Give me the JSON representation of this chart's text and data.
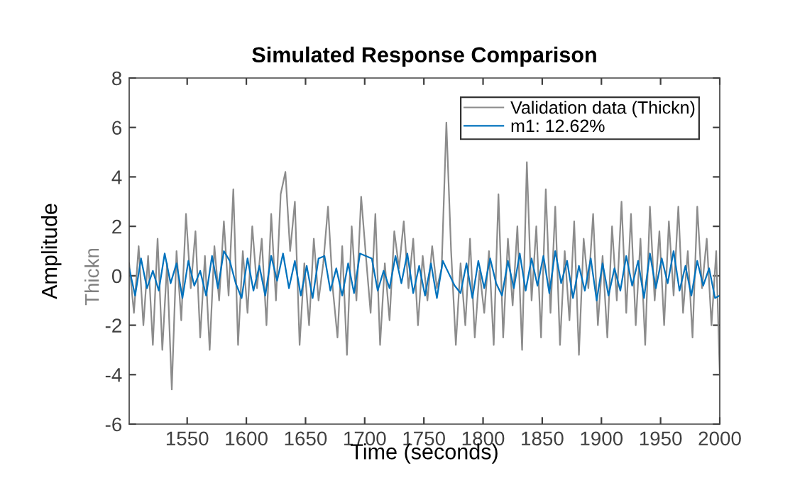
{
  "chart_data": {
    "type": "line",
    "title": "Simulated Response Comparison",
    "xlabel": "Time (seconds)",
    "ylabel": "Amplitude",
    "annotations": [
      "Thickn"
    ],
    "xlim": [
      1501,
      2000
    ],
    "xticks": [
      1550,
      1600,
      1650,
      1700,
      1750,
      1800,
      1850,
      1900,
      1950,
      2000
    ],
    "ylim": [
      -6,
      8
    ],
    "yticks": [
      -6,
      -4,
      -2,
      0,
      2,
      4,
      6,
      8
    ],
    "grid": false,
    "legend": "top right",
    "line_style": "solid",
    "marker": "none",
    "series": [
      {
        "name": "Validation data (Thickn)",
        "color": "#8c8c8c",
        "x": [
          1501,
          1505,
          1509,
          1513,
          1517,
          1521,
          1525,
          1529,
          1533,
          1537,
          1541,
          1545,
          1549,
          1553,
          1557,
          1561,
          1565,
          1569,
          1573,
          1577,
          1581,
          1585,
          1589,
          1593,
          1597,
          1601,
          1605,
          1609,
          1613,
          1617,
          1621,
          1625,
          1629,
          1633,
          1637,
          1641,
          1645,
          1649,
          1653,
          1657,
          1661,
          1665,
          1669,
          1673,
          1677,
          1681,
          1685,
          1689,
          1693,
          1697,
          1701,
          1705,
          1709,
          1713,
          1717,
          1721,
          1725,
          1729,
          1733,
          1737,
          1741,
          1745,
          1749,
          1753,
          1757,
          1761,
          1765,
          1769,
          1773,
          1777,
          1781,
          1785,
          1789,
          1793,
          1797,
          1801,
          1805,
          1809,
          1813,
          1817,
          1821,
          1825,
          1829,
          1833,
          1837,
          1841,
          1845,
          1849,
          1853,
          1857,
          1861,
          1865,
          1869,
          1873,
          1877,
          1881,
          1885,
          1889,
          1893,
          1897,
          1901,
          1905,
          1909,
          1913,
          1917,
          1921,
          1925,
          1929,
          1933,
          1937,
          1941,
          1945,
          1949,
          1953,
          1957,
          1961,
          1965,
          1969,
          1973,
          1977,
          1981,
          1985,
          1989,
          1993,
          1997,
          2000
        ],
        "values": [
          0.5,
          -1.5,
          1.2,
          -2.0,
          0.8,
          -2.8,
          1.5,
          -3.0,
          0.5,
          -4.6,
          1.0,
          -1.8,
          2.5,
          -0.5,
          1.8,
          -2.5,
          0.8,
          -3.0,
          1.2,
          -1.0,
          2.2,
          -0.8,
          3.5,
          -2.8,
          1.0,
          -1.5,
          2.0,
          -0.5,
          1.5,
          -2.0,
          2.5,
          -1.0,
          3.3,
          4.2,
          1.0,
          3.0,
          -2.8,
          0.5,
          -2.0,
          1.5,
          -1.0,
          0.5,
          2.8,
          -0.5,
          -2.5,
          1.2,
          -3.2,
          2.0,
          -1.0,
          3.2,
          0.8,
          -1.5,
          2.5,
          -2.8,
          0.5,
          -1.8,
          1.8,
          0.3,
          2.2,
          -0.5,
          1.5,
          -2.0,
          0.8,
          -1.0,
          1.2,
          -0.5,
          0.3,
          6.2,
          1.0,
          -2.8,
          0.5,
          -2.0,
          1.5,
          -2.5,
          0.2,
          -1.5,
          1.0,
          -2.8,
          3.3,
          -2.5,
          1.5,
          -1.2,
          2.0,
          -3.0,
          4.6,
          -1.0,
          2.0,
          -2.5,
          3.5,
          -1.5,
          2.8,
          -2.8,
          1.0,
          -1.8,
          2.2,
          -3.2,
          1.5,
          -0.5,
          2.5,
          -2.0,
          0.8,
          -2.5,
          2.0,
          -1.0,
          3.0,
          -1.5,
          2.5,
          -2.0,
          1.5,
          -2.8,
          2.8,
          -1.0,
          1.8,
          -2.0,
          2.2,
          -0.8,
          2.8,
          -1.5,
          1.0,
          -2.5,
          2.8,
          -0.5,
          1.5,
          -2.0,
          1.0,
          -4.0
        ]
      },
      {
        "name": "m1: 12.62%",
        "color": "#0072bd",
        "x": [
          1501,
          1506,
          1511,
          1516,
          1521,
          1526,
          1531,
          1536,
          1541,
          1546,
          1551,
          1556,
          1561,
          1566,
          1571,
          1576,
          1581,
          1586,
          1591,
          1596,
          1601,
          1606,
          1611,
          1616,
          1621,
          1626,
          1631,
          1636,
          1641,
          1646,
          1651,
          1656,
          1661,
          1666,
          1671,
          1676,
          1681,
          1686,
          1691,
          1696,
          1701,
          1706,
          1711,
          1716,
          1721,
          1726,
          1731,
          1736,
          1741,
          1746,
          1751,
          1756,
          1761,
          1766,
          1771,
          1776,
          1781,
          1786,
          1791,
          1796,
          1801,
          1806,
          1811,
          1816,
          1821,
          1826,
          1831,
          1836,
          1841,
          1846,
          1851,
          1856,
          1861,
          1866,
          1871,
          1876,
          1881,
          1886,
          1891,
          1896,
          1901,
          1906,
          1911,
          1916,
          1921,
          1926,
          1931,
          1936,
          1941,
          1946,
          1951,
          1956,
          1961,
          1966,
          1971,
          1976,
          1981,
          1986,
          1991,
          1996,
          2000
        ],
        "values": [
          0.3,
          -0.8,
          0.7,
          -0.5,
          0.2,
          -0.6,
          0.9,
          -0.3,
          0.5,
          -0.9,
          0.6,
          -0.4,
          0.2,
          -0.8,
          0.8,
          -0.5,
          1.0,
          0.6,
          -0.3,
          -0.9,
          0.7,
          -0.6,
          0.4,
          -0.8,
          0.8,
          -0.2,
          0.9,
          -0.5,
          0.6,
          -0.8,
          0.4,
          -0.9,
          0.7,
          0.8,
          -0.6,
          0.3,
          -0.8,
          0.5,
          -0.7,
          0.9,
          0.8,
          0.7,
          -0.6,
          0.2,
          -0.5,
          0.8,
          -0.3,
          0.9,
          -0.7,
          0.4,
          -0.8,
          0.5,
          -0.9,
          0.6,
          0.1,
          -0.4,
          -0.7,
          0.5,
          -0.9,
          0.6,
          -0.5,
          0.7,
          -0.3,
          -0.8,
          0.6,
          -0.5,
          0.9,
          -0.6,
          0.7,
          -0.4,
          0.8,
          -0.7,
          1.0,
          -0.3,
          0.6,
          -0.9,
          0.4,
          -0.6,
          0.7,
          -1.0,
          0.5,
          -0.8,
          0.3,
          -0.6,
          0.8,
          -0.4,
          0.6,
          -0.9,
          0.9,
          -0.5,
          0.7,
          -0.3,
          1.0,
          -0.6,
          0.4,
          -0.8,
          0.6,
          -0.4,
          0.3,
          -0.9,
          -0.8
        ]
      }
    ]
  }
}
